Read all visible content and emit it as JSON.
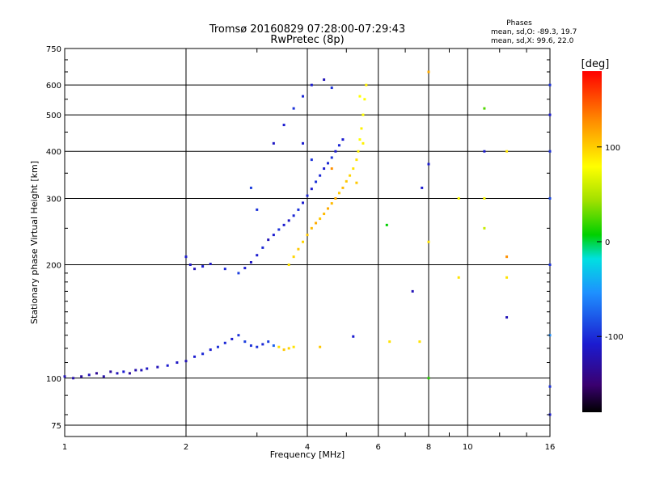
{
  "chart_data": {
    "type": "scatter",
    "title": "Tromsø 20160829 07:28:00-07:29:43",
    "subtitle": "RwPretec (8p)",
    "xlabel": "Frequency [MHz]",
    "ylabel": "Stationary phase Virtual Height [km]",
    "x_scale": "log",
    "y_scale": "log",
    "xlim": [
      1,
      16
    ],
    "ylim": [
      70,
      750
    ],
    "x_ticks": [
      1,
      2,
      4,
      6,
      8,
      10,
      16
    ],
    "x_tick_labels": [
      "1",
      "2",
      "4",
      "6",
      "8",
      "10",
      "16"
    ],
    "y_ticks": [
      75,
      100,
      200,
      300,
      400,
      500,
      600,
      750
    ],
    "y_tick_labels": [
      "75",
      "100",
      "200",
      "300",
      "400",
      "500",
      "600",
      "750"
    ],
    "grid": true,
    "stats": {
      "heading": "Phases",
      "line_o": "mean, sd,O: -89.3, 19.7",
      "line_x": "mean, sd,X:  99.6, 22.0"
    },
    "colorbar": {
      "label": "[deg]",
      "range": [
        -180,
        180
      ],
      "tick_values": [
        100,
        0,
        -100
      ],
      "tick_labels": [
        "100",
        "0",
        "-100"
      ],
      "colormap": "rainbow (black-purple-blue-cyan-green-yellow-orange-red)"
    },
    "series": [
      {
        "note": "low trace (E-region / lower F), mostly blue phases",
        "points": [
          [
            1.0,
            101,
            -120
          ],
          [
            1.05,
            100,
            -125
          ],
          [
            1.1,
            101,
            -130
          ],
          [
            1.15,
            102,
            -120
          ],
          [
            1.2,
            103,
            -135
          ],
          [
            1.25,
            101,
            -125
          ],
          [
            1.3,
            104,
            -130
          ],
          [
            1.35,
            103,
            -120
          ],
          [
            1.4,
            104,
            -110
          ],
          [
            1.45,
            103,
            -130
          ],
          [
            1.5,
            105,
            -125
          ],
          [
            1.55,
            105,
            -120
          ],
          [
            1.6,
            106,
            -115
          ],
          [
            1.7,
            107,
            -120
          ],
          [
            1.8,
            108,
            -110
          ],
          [
            1.9,
            110,
            -115
          ],
          [
            2.0,
            111,
            -120
          ],
          [
            2.1,
            114,
            -110
          ],
          [
            2.2,
            116,
            -105
          ],
          [
            2.3,
            119,
            -110
          ],
          [
            2.4,
            121,
            -100
          ],
          [
            2.5,
            124,
            -105
          ],
          [
            2.6,
            127,
            -110
          ],
          [
            2.7,
            130,
            -100
          ],
          [
            2.8,
            125,
            -95
          ],
          [
            2.9,
            122,
            -100
          ],
          [
            3.0,
            121,
            -100
          ],
          [
            3.1,
            123,
            -105
          ],
          [
            3.2,
            125,
            -95
          ],
          [
            3.3,
            122,
            -80
          ],
          [
            3.4,
            121,
            110
          ],
          [
            3.5,
            119,
            120
          ],
          [
            3.6,
            120,
            115
          ],
          [
            3.7,
            121,
            110
          ],
          [
            4.3,
            121,
            120
          ],
          [
            5.2,
            129,
            -110
          ]
        ]
      },
      {
        "note": "F-region trace (O-mode), blue phases",
        "points": [
          [
            2.0,
            210,
            -110
          ],
          [
            2.05,
            200,
            -115
          ],
          [
            2.1,
            195,
            -120
          ],
          [
            2.2,
            198,
            -110
          ],
          [
            2.3,
            201,
            -115
          ],
          [
            2.5,
            195,
            -105
          ],
          [
            2.7,
            190,
            -95
          ],
          [
            2.8,
            196,
            -110
          ],
          [
            2.9,
            203,
            -115
          ],
          [
            3.0,
            212,
            -110
          ],
          [
            3.1,
            222,
            -105
          ],
          [
            3.2,
            233,
            -120
          ],
          [
            3.3,
            240,
            -110
          ],
          [
            3.4,
            248,
            -100
          ],
          [
            3.5,
            255,
            -110
          ],
          [
            3.6,
            262,
            -115
          ],
          [
            3.7,
            270,
            -105
          ],
          [
            3.8,
            280,
            -100
          ],
          [
            3.9,
            292,
            -110
          ],
          [
            4.0,
            305,
            -105
          ],
          [
            4.1,
            318,
            -110
          ],
          [
            4.2,
            332,
            -100
          ],
          [
            4.3,
            345,
            -105
          ],
          [
            4.4,
            360,
            -110
          ],
          [
            4.5,
            372,
            -105
          ],
          [
            4.6,
            385,
            -100
          ],
          [
            4.7,
            400,
            -110
          ],
          [
            4.8,
            415,
            -105
          ],
          [
            4.9,
            430,
            -110
          ],
          [
            3.3,
            420,
            -115
          ],
          [
            3.5,
            470,
            -110
          ],
          [
            3.7,
            520,
            -100
          ],
          [
            3.9,
            560,
            -105
          ],
          [
            4.1,
            600,
            -110
          ],
          [
            4.4,
            620,
            -120
          ],
          [
            4.6,
            590,
            -100
          ],
          [
            2.9,
            320,
            -95
          ],
          [
            3.0,
            280,
            -100
          ],
          [
            3.9,
            420,
            -110
          ],
          [
            4.1,
            380,
            -100
          ]
        ]
      },
      {
        "note": "F-region trace (X-mode), orange/yellow phases",
        "points": [
          [
            3.6,
            200,
            110
          ],
          [
            3.7,
            210,
            115
          ],
          [
            3.8,
            220,
            120
          ],
          [
            3.9,
            230,
            115
          ],
          [
            4.0,
            240,
            120
          ],
          [
            4.1,
            250,
            125
          ],
          [
            4.2,
            258,
            130
          ],
          [
            4.3,
            265,
            120
          ],
          [
            4.4,
            273,
            125
          ],
          [
            4.5,
            282,
            130
          ],
          [
            4.6,
            291,
            125
          ],
          [
            4.7,
            300,
            130
          ],
          [
            4.8,
            310,
            120
          ],
          [
            4.9,
            320,
            125
          ],
          [
            5.0,
            333,
            120
          ],
          [
            5.1,
            345,
            115
          ],
          [
            5.2,
            360,
            110
          ],
          [
            5.3,
            380,
            110
          ],
          [
            5.35,
            400,
            105
          ],
          [
            5.4,
            430,
            100
          ],
          [
            5.45,
            460,
            105
          ],
          [
            5.5,
            500,
            100
          ],
          [
            5.55,
            550,
            100
          ],
          [
            5.6,
            600,
            105
          ],
          [
            5.4,
            560,
            100
          ],
          [
            5.5,
            420,
            105
          ],
          [
            5.3,
            330,
            120
          ],
          [
            4.6,
            360,
            140
          ]
        ]
      },
      {
        "note": "high-frequency interference columns",
        "points": [
          [
            8.0,
            650,
            130
          ],
          [
            8.0,
            370,
            -110
          ],
          [
            8.0,
            230,
            110
          ],
          [
            8.0,
            100,
            20
          ],
          [
            7.7,
            320,
            -110
          ],
          [
            7.3,
            170,
            -120
          ],
          [
            7.6,
            125,
            110
          ],
          [
            11.0,
            520,
            30
          ],
          [
            11.0,
            400,
            -110
          ],
          [
            11.0,
            300,
            100
          ],
          [
            11.0,
            250,
            70
          ],
          [
            12.5,
            400,
            110
          ],
          [
            12.5,
            210,
            140
          ],
          [
            12.5,
            185,
            110
          ],
          [
            12.5,
            145,
            -120
          ],
          [
            16.0,
            600,
            -100
          ],
          [
            16.0,
            500,
            -110
          ],
          [
            16.0,
            400,
            -100
          ],
          [
            16.0,
            300,
            -90
          ],
          [
            16.0,
            200,
            -100
          ],
          [
            16.0,
            130,
            -60
          ],
          [
            16.0,
            95,
            -100
          ],
          [
            16.0,
            80,
            -110
          ],
          [
            9.5,
            300,
            100
          ],
          [
            9.5,
            185,
            110
          ],
          [
            6.3,
            255,
            10
          ],
          [
            6.4,
            125,
            110
          ]
        ]
      }
    ]
  }
}
